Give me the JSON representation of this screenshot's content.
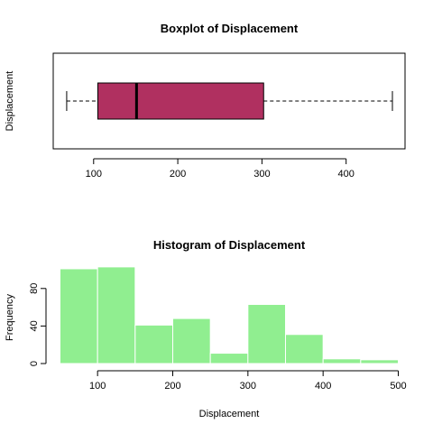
{
  "chart_data": [
    {
      "type": "boxplot",
      "title": "Boxplot of Displacement",
      "xlabel": "",
      "ylabel": "Displacement",
      "xlim": [
        52,
        470
      ],
      "ticks": [
        100,
        200,
        300,
        400
      ],
      "stats": {
        "min": 68,
        "q1": 105,
        "median": 151,
        "q3": 302,
        "max": 455
      },
      "box_color": "#b03060",
      "whisker_style": "dashed",
      "frame": true
    },
    {
      "type": "histogram",
      "title": "Histogram of Displacement",
      "xlabel": "Displacement",
      "ylabel": "Frequency",
      "xlim": [
        41,
        509
      ],
      "ylim": [
        0,
        100
      ],
      "xticks": [
        100,
        200,
        300,
        400,
        500
      ],
      "yticks": [
        0,
        40,
        80
      ],
      "bin_edges": [
        50,
        100,
        150,
        200,
        250,
        300,
        350,
        400,
        450,
        500
      ],
      "counts": [
        101,
        103,
        41,
        48,
        11,
        63,
        31,
        5,
        4
      ],
      "bar_color": "#90ee90",
      "bar_border": "#ffffff"
    }
  ]
}
